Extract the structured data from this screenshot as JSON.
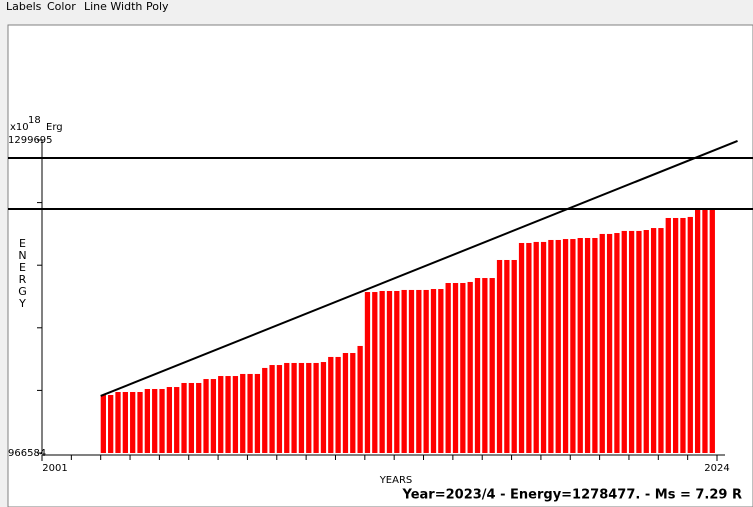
{
  "menu": [
    "Labels",
    "Color",
    "Line Width",
    "Poly"
  ],
  "status": "Year=2023/4 - Energy=1278477. - Ms = 7.29 R",
  "chart_data": {
    "type": "bar",
    "x_label": "YEARS",
    "y_label": "ENERGY",
    "y_unit": {
      "base": "x10",
      "exponent": "18",
      "unit": "Erg"
    },
    "x": [
      2003,
      2003.25,
      2003.5,
      2003.75,
      2004,
      2004.25,
      2004.5,
      2004.75,
      2005,
      2005.25,
      2005.5,
      2005.75,
      2006,
      2006.25,
      2006.5,
      2006.75,
      2007,
      2007.25,
      2007.5,
      2007.75,
      2008,
      2008.25,
      2008.5,
      2008.75,
      2009,
      2009.25,
      2009.5,
      2009.75,
      2010,
      2010.25,
      2010.5,
      2010.75,
      2011,
      2011.25,
      2011.5,
      2011.75,
      2012,
      2012.25,
      2012.5,
      2012.75,
      2013,
      2013.25,
      2013.5,
      2013.75,
      2014,
      2014.25,
      2014.5,
      2014.75,
      2015,
      2015.25,
      2015.5,
      2015.75,
      2016,
      2016.25,
      2016.5,
      2016.75,
      2017,
      2017.25,
      2017.5,
      2017.75,
      2018,
      2018.25,
      2018.5,
      2018.75,
      2019,
      2019.25,
      2019.5,
      2019.75,
      2020,
      2020.25,
      2020.5,
      2020.75,
      2021,
      2021.25,
      2021.5,
      2021.75,
      2022,
      2022.25,
      2022.5,
      2022.75,
      2023,
      2023.25,
      2023.5,
      2023.75
    ],
    "values": [
      1028300,
      1028300,
      1031500,
      1031500,
      1031500,
      1031500,
      1034700,
      1034700,
      1034700,
      1036800,
      1036800,
      1041100,
      1041100,
      1041100,
      1045300,
      1045300,
      1048500,
      1048500,
      1048500,
      1050700,
      1050700,
      1050700,
      1057100,
      1060200,
      1060200,
      1062400,
      1062400,
      1062400,
      1062400,
      1062400,
      1063400,
      1068800,
      1068800,
      1073000,
      1073000,
      1080500,
      1137900,
      1137900,
      1139000,
      1139000,
      1139000,
      1140100,
      1140100,
      1140100,
      1140100,
      1141100,
      1141100,
      1147500,
      1147500,
      1147500,
      1148600,
      1152800,
      1152800,
      1152800,
      1172000,
      1172000,
      1172000,
      1190100,
      1190100,
      1191200,
      1191200,
      1193300,
      1193300,
      1194300,
      1194300,
      1195400,
      1195400,
      1195400,
      1199700,
      1199700,
      1200700,
      1202900,
      1202900,
      1202900,
      1203900,
      1206000,
      1206000,
      1216700,
      1216700,
      1216700,
      1217800,
      1226300,
      1226300,
      1226300
    ],
    "color": "#ff0000",
    "trend": {
      "x": [
        2003,
        2024.7
      ],
      "values": [
        1027300,
        1298700
      ],
      "color": "#000000"
    },
    "hlines": [
      1280600,
      1226300
    ],
    "xlim": [
      2001,
      2024
    ],
    "xticks": [
      2001,
      2024
    ],
    "ylim": [
      966584,
      1299695
    ],
    "yticks": [
      966584,
      1299695
    ]
  }
}
